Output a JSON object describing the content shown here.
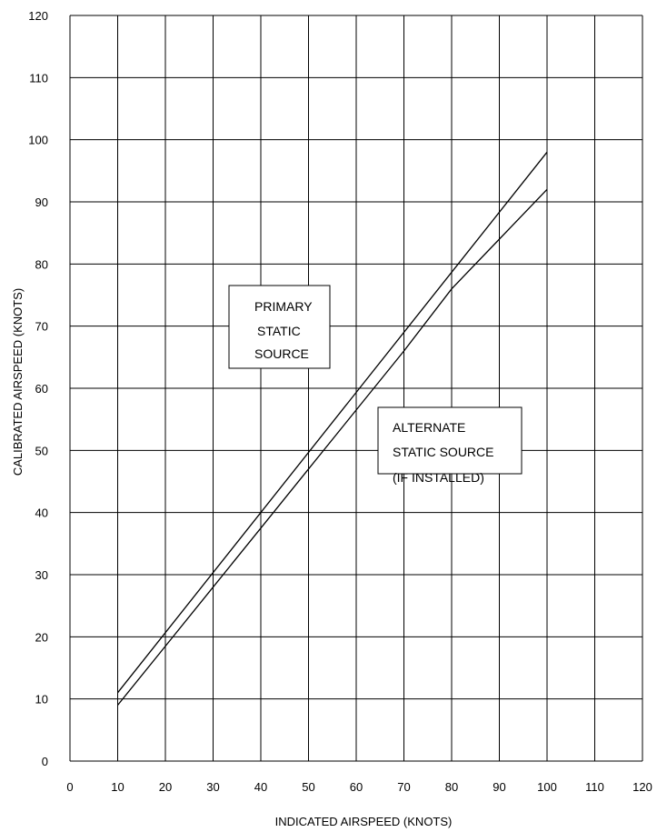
{
  "chart_data": {
    "type": "line",
    "title": "",
    "xlabel": "INDICATED AIRSPEED (KNOTS)",
    "ylabel": "CALIBRATED AIRSPEED (KNOTS)",
    "xlim": [
      0,
      120
    ],
    "ylim": [
      0,
      120
    ],
    "x_ticks": [
      0,
      10,
      20,
      30,
      40,
      50,
      60,
      70,
      80,
      90,
      100,
      110,
      120
    ],
    "y_ticks": [
      0,
      10,
      20,
      30,
      40,
      50,
      60,
      70,
      80,
      90,
      100,
      110,
      120
    ],
    "grid": true,
    "series": [
      {
        "name": "PRIMARY STATIC SOURCE",
        "x": [
          10,
          100
        ],
        "y": [
          11,
          98
        ]
      },
      {
        "name": "ALTERNATE STATIC SOURCE (IF INSTALLED)",
        "x": [
          10,
          20,
          30,
          40,
          50,
          60,
          70,
          80,
          90,
          100
        ],
        "y": [
          9,
          18.5,
          28,
          37.5,
          47,
          56.5,
          66,
          76,
          84,
          92
        ]
      }
    ],
    "annotations": [
      {
        "lines": [
          "PRIMARY",
          "STATIC",
          "SOURCE"
        ]
      },
      {
        "lines": [
          "ALTERNATE",
          "STATIC SOURCE",
          "(IF INSTALLED)"
        ]
      }
    ]
  }
}
